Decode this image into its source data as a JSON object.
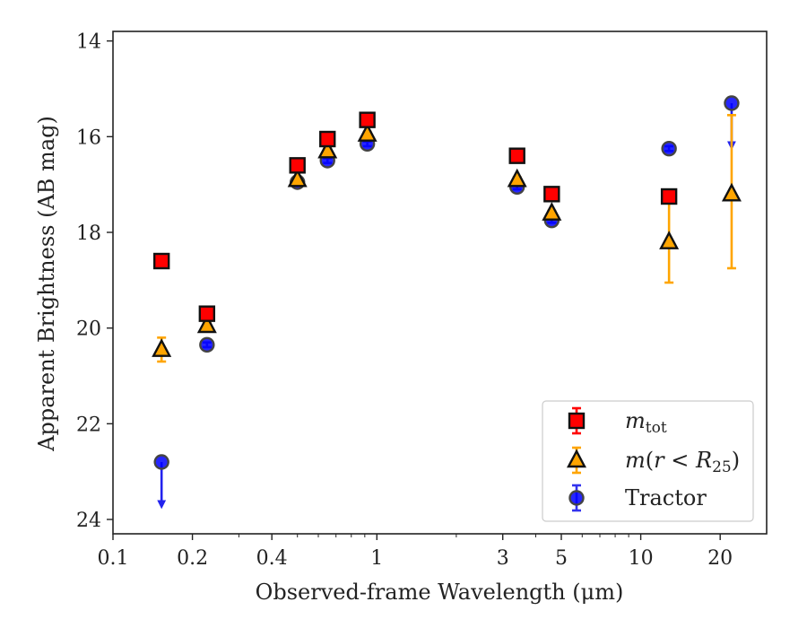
{
  "chart_data": {
    "type": "scatter",
    "title": "",
    "xlabel": "Observed-frame Wavelength (μm)",
    "ylabel": "Apparent Brightness (AB mag)",
    "xscale": "log",
    "xlim": [
      0.1,
      30
    ],
    "ylim": [
      24.3,
      13.8
    ],
    "y_inverted": true,
    "xticks": [
      0.1,
      0.2,
      0.4,
      1,
      3,
      5,
      10,
      20
    ],
    "xtick_labels": [
      "0.1",
      "0.2",
      "0.4",
      "1",
      "3",
      "5",
      "10",
      "20"
    ],
    "yticks": [
      14,
      16,
      18,
      20,
      22,
      24
    ],
    "ytick_labels": [
      "14",
      "16",
      "18",
      "20",
      "22",
      "24"
    ],
    "grid": false,
    "legend_position": "lower-right",
    "series": [
      {
        "name": "m_tot",
        "marker": "square",
        "fill": "#ff0000",
        "errcolor": "#ff0000",
        "points": [
          {
            "x": 0.1528,
            "y": 18.6,
            "err": 0.05
          },
          {
            "x": 0.2271,
            "y": 19.7,
            "err": 0.05
          },
          {
            "x": 0.5,
            "y": 16.6,
            "err": 0.05
          },
          {
            "x": 0.65,
            "y": 16.05,
            "err": 0.05
          },
          {
            "x": 0.92,
            "y": 15.65,
            "err": 0.05
          },
          {
            "x": 3.4,
            "y": 16.4,
            "err": 0.05
          },
          {
            "x": 4.6,
            "y": 17.2,
            "err": 0.05
          },
          {
            "x": 12.8,
            "y": 17.25,
            "err": 0.05
          }
        ]
      },
      {
        "name": "m(r<R25)",
        "marker": "triangle",
        "fill": "#ffa500",
        "errcolor": "#ffa500",
        "points": [
          {
            "x": 0.1528,
            "y": 20.45,
            "err": 0.25
          },
          {
            "x": 0.2271,
            "y": 19.95,
            "err": 0.05
          },
          {
            "x": 0.5,
            "y": 16.9,
            "err": 0.05
          },
          {
            "x": 0.65,
            "y": 16.3,
            "err": 0.05
          },
          {
            "x": 0.92,
            "y": 15.95,
            "err": 0.05
          },
          {
            "x": 3.4,
            "y": 16.9,
            "err": 0.05
          },
          {
            "x": 4.6,
            "y": 17.6,
            "err": 0.05
          },
          {
            "x": 12.8,
            "y": 18.2,
            "err": 0.85
          },
          {
            "x": 22.1,
            "y": 17.2,
            "err_lo": 1.55,
            "err_hi": 1.65
          }
        ]
      },
      {
        "name": "Tractor",
        "marker": "circle",
        "fill": "#0000ff",
        "errcolor": "#3333ee",
        "points": [
          {
            "x": 0.1528,
            "y": 22.8,
            "upper_limit": true
          },
          {
            "x": 0.2271,
            "y": 20.35,
            "err": 0.05
          },
          {
            "x": 0.5,
            "y": 16.95,
            "err": 0.05
          },
          {
            "x": 0.65,
            "y": 16.5,
            "err": 0.05
          },
          {
            "x": 0.92,
            "y": 16.15,
            "err": 0.05
          },
          {
            "x": 3.4,
            "y": 17.05,
            "err": 0.05
          },
          {
            "x": 4.6,
            "y": 17.75,
            "err": 0.05
          },
          {
            "x": 12.8,
            "y": 16.25,
            "err": 0.05
          },
          {
            "x": 22.1,
            "y": 15.3,
            "upper_limit": true
          }
        ]
      }
    ]
  }
}
